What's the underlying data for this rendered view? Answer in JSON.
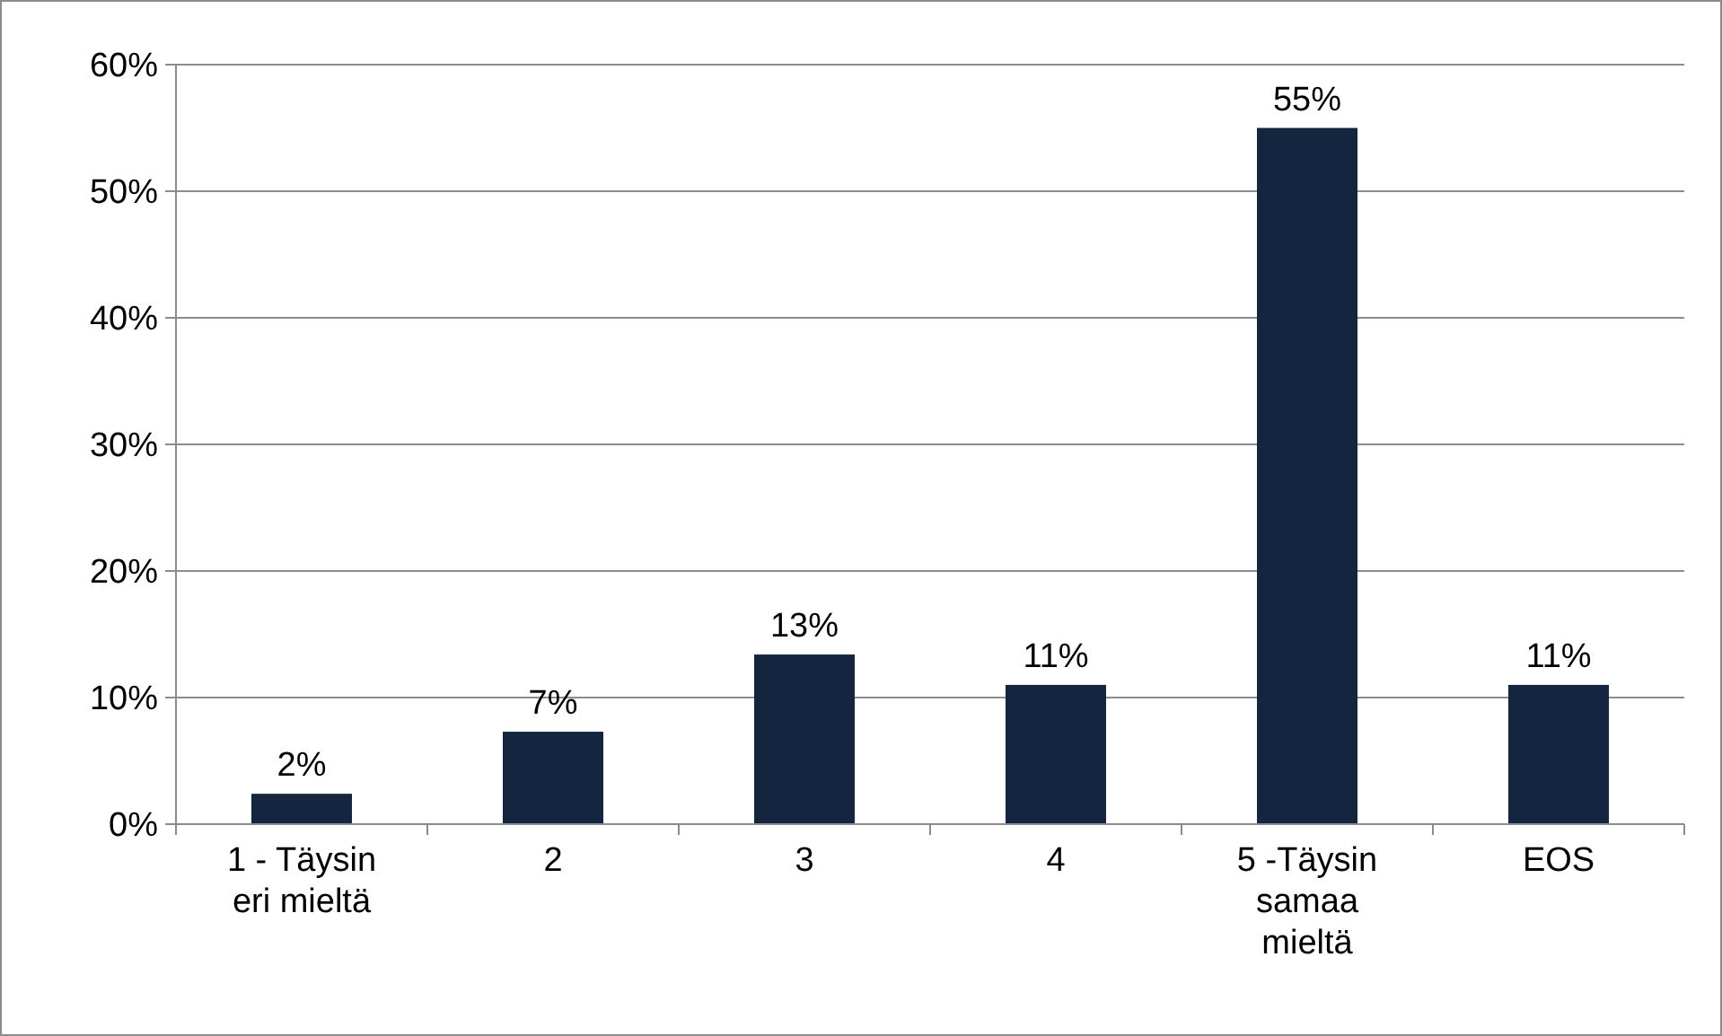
{
  "chart_data": {
    "type": "bar",
    "categories": [
      "1 - Täysin eri mieltä",
      "2",
      "3",
      "4",
      "5 -Täysin samaa mieltä",
      "EOS"
    ],
    "values": [
      2.4,
      7.3,
      13.4,
      11,
      55,
      11
    ],
    "value_labels": [
      "2%",
      "7%",
      "13%",
      "11%",
      "55%",
      "11%"
    ],
    "color": "#14263f",
    "ylim": [
      0,
      60
    ],
    "yticks": [
      {
        "value": 0,
        "label": "0%"
      },
      {
        "value": 10,
        "label": "10%"
      },
      {
        "value": 20,
        "label": "20%"
      },
      {
        "value": 30,
        "label": "30%"
      },
      {
        "value": 40,
        "label": "40%"
      },
      {
        "value": 50,
        "label": "50%"
      },
      {
        "value": 60,
        "label": "60%"
      }
    ],
    "grid": "y"
  }
}
